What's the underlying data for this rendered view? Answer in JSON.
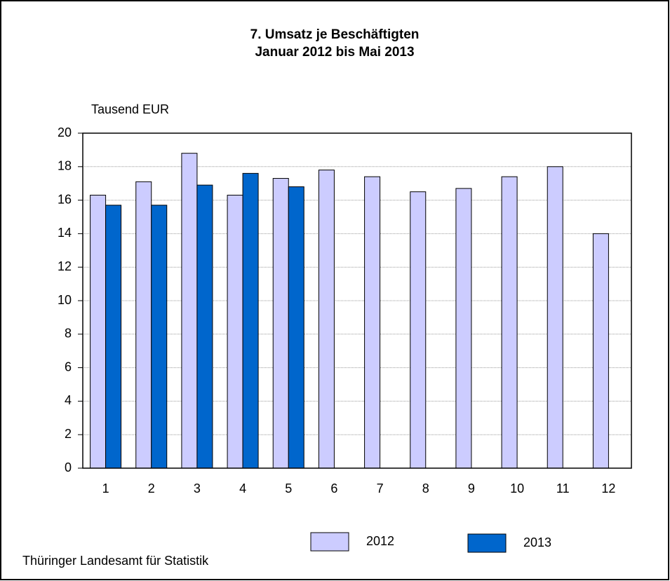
{
  "chart_data": {
    "type": "bar",
    "title": "7. Umsatz je Beschäftigten",
    "subtitle": "Januar 2012 bis Mai 2013",
    "y_label": "Tausend EUR",
    "source": "Thüringer Landesamt für Statistik",
    "categories": [
      "1",
      "2",
      "3",
      "4",
      "5",
      "6",
      "7",
      "8",
      "9",
      "10",
      "11",
      "12"
    ],
    "series": [
      {
        "name": "2012",
        "color": "#ccccff",
        "values": [
          16.3,
          17.1,
          18.8,
          16.3,
          17.3,
          17.8,
          17.4,
          16.5,
          16.7,
          17.4,
          18.0,
          14.0
        ]
      },
      {
        "name": "2013",
        "color": "#0066cc",
        "values": [
          15.7,
          15.7,
          16.9,
          17.6,
          16.8,
          null,
          null,
          null,
          null,
          null,
          null,
          null
        ]
      }
    ],
    "ylim": [
      0,
      20
    ],
    "yticks": [
      0,
      2,
      4,
      6,
      8,
      10,
      12,
      14,
      16,
      18,
      20
    ],
    "grid": true
  }
}
